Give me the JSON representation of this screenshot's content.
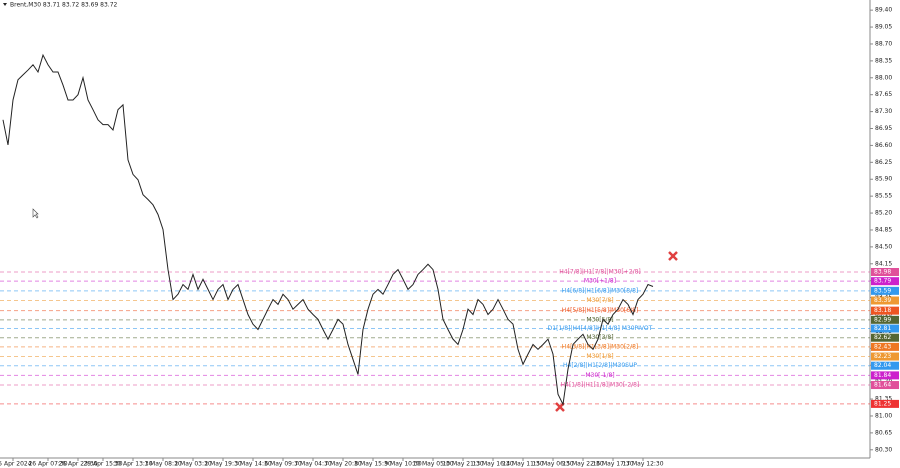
{
  "chart_data": {
    "type": "line",
    "title": "Brent,M30  83.71 83.72 83.69 83.72",
    "color": "#222222",
    "categories": [
      null,
      null,
      "25 Apr 2024",
      null,
      null,
      null,
      null,
      null,
      null,
      "26 Apr 07:30",
      null,
      null,
      null,
      null,
      null,
      "26 Apr 23:30",
      null,
      null,
      null,
      null,
      "29 Apr 15:30",
      null,
      null,
      null,
      null,
      null,
      "30 Apr 13:30",
      null,
      null,
      null,
      null,
      null,
      "1 May 08:30",
      null,
      null,
      null,
      null,
      null,
      "2 May 03:30",
      null,
      null,
      null,
      null,
      null,
      "2 May 19:30",
      null,
      null,
      null,
      null,
      null,
      "3 May 14:30",
      null,
      null,
      null,
      null,
      null,
      "6 May 09:30",
      null,
      null,
      null,
      null,
      null,
      "7 May 04:30",
      null,
      null,
      null,
      null,
      null,
      "7 May 20:30",
      null,
      null,
      null,
      null,
      null,
      "8 May 15:30",
      null,
      null,
      null,
      null,
      null,
      "9 May 10:30",
      null,
      null,
      null,
      null,
      null,
      "10 May 05:30",
      null,
      null,
      null,
      null,
      null,
      "10 May 21:30",
      null,
      null,
      null,
      null,
      null,
      "13 May 16:30",
      null,
      null,
      null,
      null,
      null,
      "14 May 11:30",
      null,
      null,
      null,
      null,
      null,
      "15 May 06:30",
      null,
      null,
      null,
      null,
      null,
      "15 May 22:30",
      null,
      null,
      null,
      null,
      null,
      "16 May 17:30",
      null,
      null,
      null,
      null,
      null,
      "17 May 12:30",
      null,
      null
    ],
    "values": [
      87.13,
      86.61,
      87.54,
      87.96,
      88.06,
      88.16,
      88.27,
      88.12,
      88.47,
      88.27,
      88.12,
      88.12,
      87.85,
      87.54,
      87.54,
      87.65,
      88.0,
      87.54,
      87.34,
      87.13,
      87.03,
      87.03,
      86.92,
      87.34,
      87.44,
      86.3,
      86.0,
      85.89,
      85.58,
      85.48,
      85.37,
      85.17,
      84.86,
      84.03,
      83.41,
      83.52,
      83.72,
      83.62,
      83.93,
      83.62,
      83.83,
      83.62,
      83.41,
      83.62,
      83.72,
      83.41,
      83.62,
      83.72,
      83.41,
      83.1,
      82.9,
      82.79,
      83.0,
      83.21,
      83.41,
      83.31,
      83.52,
      83.41,
      83.21,
      83.31,
      83.41,
      83.21,
      83.1,
      83.0,
      82.79,
      82.59,
      82.79,
      83.0,
      82.9,
      82.48,
      82.17,
      81.86,
      82.79,
      83.21,
      83.52,
      83.62,
      83.52,
      83.72,
      83.93,
      84.03,
      83.83,
      83.62,
      83.72,
      83.93,
      84.03,
      84.14,
      84.03,
      83.62,
      83.0,
      82.79,
      82.59,
      82.48,
      82.79,
      83.21,
      83.1,
      83.41,
      83.31,
      83.1,
      83.21,
      83.41,
      83.21,
      83.0,
      82.9,
      82.38,
      82.07,
      82.28,
      82.48,
      82.38,
      82.48,
      82.59,
      82.28,
      81.45,
      81.24,
      81.97,
      82.48,
      82.59,
      82.69,
      82.48,
      82.38,
      82.59,
      83.0,
      82.9,
      83.1,
      83.21,
      83.41,
      83.31,
      83.1,
      83.41,
      83.52,
      83.72,
      83.68
    ],
    "ylim": [
      80.13,
      89.61
    ],
    "yticks": [
      {
        "value": 89.4,
        "label": "89.40"
      },
      89.05,
      {
        "value": 88.7,
        "label": "88.70"
      },
      88.35,
      {
        "value": 88.0,
        "label": "88.00"
      },
      87.65,
      {
        "value": 87.3,
        "label": "87.30"
      },
      86.95,
      {
        "value": 86.6,
        "label": "86.60"
      },
      86.25,
      {
        "value": 85.9,
        "label": "85.90"
      },
      85.55,
      {
        "value": 85.2,
        "label": "85.20"
      },
      84.85,
      {
        "value": 84.5,
        "label": "84.50"
      },
      84.15,
      {
        "value": 83.8,
        "label": "83.80"
      },
      83.45,
      {
        "value": 83.1,
        "label": "83.10"
      },
      82.75,
      {
        "value": 82.4,
        "label": "82.40"
      },
      82.05,
      {
        "value": 81.7,
        "label": "81.70"
      },
      81.35,
      {
        "value": 81.0,
        "label": "81.00"
      },
      80.65,
      {
        "value": 80.3,
        "label": "80.30"
      }
    ],
    "levels": [
      {
        "label": "H4[7/8]|H1[7/8]|M30[+2/8]",
        "value": 83.98,
        "color": "#e0509a"
      },
      {
        "label": "M30[+1/8]",
        "value": 83.79,
        "color": "#cc22cc"
      },
      {
        "label": "H4[6/8]|H1[6/8]|M30[8/8]",
        "value": 83.59,
        "color": "#3399ee"
      },
      {
        "label": "M30[7/8]",
        "value": 83.39,
        "color": "#ee9933"
      },
      {
        "label": "H4[5/8]|H1[5/8]|M30[6/8]",
        "value": 83.18,
        "color": "#ee5522"
      },
      {
        "label": "M30[5/8]",
        "value": 82.99,
        "color": "#556633"
      },
      {
        "label": "D1[1/8]|H4[4/8]|H1[4/8] M30PIVOT",
        "value": 82.81,
        "color": "#3399ee"
      },
      {
        "label": "M30[3/8]",
        "value": 82.62,
        "color": "#556633"
      },
      {
        "label": "H4[3/8]|H1[3/8]|M30[2/8]",
        "value": 82.43,
        "color": "#ee7722"
      },
      {
        "label": "M30[1/8]",
        "value": 82.23,
        "color": "#ee9933"
      },
      {
        "label": "H4[2/8]|H1[2/8]|M30SUP",
        "value": 82.04,
        "color": "#3399ee"
      },
      {
        "label": "M30[-1/8]",
        "value": 81.84,
        "color": "#cc22cc"
      },
      {
        "label": "H4[1/8]|H1[1/8]|M30[-2/8]",
        "value": 81.64,
        "color": "#e0509a"
      },
      {
        "value": 81.25,
        "color": "#ee3333"
      }
    ]
  }
}
